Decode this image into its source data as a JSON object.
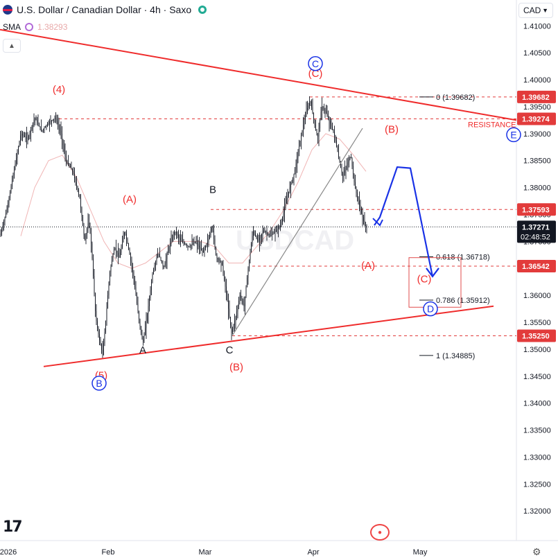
{
  "header": {
    "title": "U.S. Dollar / Canadian Dollar · 4h · Saxo",
    "indicator_name": "SMA",
    "indicator_value": "1.38293",
    "currency_button": "CAD",
    "logo_text": "17"
  },
  "colors": {
    "wave_red": "#ef2b2b",
    "wave_blue": "#1932e6",
    "candle": "#131722",
    "sma_line": "#f0b4b4",
    "grid_dash": "#e23b3b"
  },
  "chart_data": {
    "type": "candlestick",
    "ylim": [
      1.3145,
      1.4148
    ],
    "y_ticks": [
      "1.41000",
      "1.40500",
      "1.40000",
      "1.39500",
      "1.39000",
      "1.38500",
      "1.38000",
      "1.37500",
      "1.37000",
      "1.36500",
      "1.36000",
      "1.35500",
      "1.35000",
      "1.34500",
      "1.34000",
      "1.33500",
      "1.33000",
      "1.32500",
      "1.32000"
    ],
    "x_ticks": [
      "2026",
      "Feb",
      "Mar",
      "Apr",
      "May"
    ],
    "path_points": [
      [
        0,
        1.371
      ],
      [
        10,
        1.376
      ],
      [
        20,
        1.383
      ],
      [
        30,
        1.39
      ],
      [
        40,
        1.389
      ],
      [
        50,
        1.393
      ],
      [
        60,
        1.3905
      ],
      [
        70,
        1.392
      ],
      [
        80,
        1.393
      ],
      [
        88,
        1.39
      ],
      [
        95,
        1.385
      ],
      [
        105,
        1.383
      ],
      [
        115,
        1.378
      ],
      [
        122,
        1.37
      ],
      [
        128,
        1.374
      ],
      [
        132,
        1.369
      ],
      [
        138,
        1.356
      ],
      [
        143,
        1.352
      ],
      [
        148,
        1.349
      ],
      [
        153,
        1.356
      ],
      [
        158,
        1.364
      ],
      [
        165,
        1.369
      ],
      [
        172,
        1.367
      ],
      [
        180,
        1.372
      ],
      [
        185,
        1.369
      ],
      [
        192,
        1.364
      ],
      [
        200,
        1.356
      ],
      [
        206,
        1.351
      ],
      [
        212,
        1.356
      ],
      [
        220,
        1.364
      ],
      [
        228,
        1.368
      ],
      [
        236,
        1.365
      ],
      [
        244,
        1.369
      ],
      [
        252,
        1.372
      ],
      [
        262,
        1.37
      ],
      [
        272,
        1.369
      ],
      [
        282,
        1.37
      ],
      [
        292,
        1.368
      ],
      [
        300,
        1.37
      ],
      [
        306,
        1.373
      ],
      [
        312,
        1.367
      ],
      [
        320,
        1.366
      ],
      [
        328,
        1.359
      ],
      [
        334,
        1.353
      ],
      [
        340,
        1.356
      ],
      [
        346,
        1.36
      ],
      [
        352,
        1.358
      ],
      [
        358,
        1.365
      ],
      [
        365,
        1.372
      ],
      [
        372,
        1.37
      ],
      [
        380,
        1.372
      ],
      [
        390,
        1.371
      ],
      [
        398,
        1.372
      ],
      [
        405,
        1.373
      ],
      [
        410,
        1.376
      ],
      [
        418,
        1.38
      ],
      [
        425,
        1.383
      ],
      [
        432,
        1.388
      ],
      [
        438,
        1.392
      ],
      [
        444,
        1.395
      ],
      [
        448,
        1.396
      ],
      [
        452,
        1.393
      ],
      [
        458,
        1.389
      ],
      [
        464,
        1.395
      ],
      [
        470,
        1.394
      ],
      [
        476,
        1.392
      ],
      [
        482,
        1.39
      ],
      [
        488,
        1.386
      ],
      [
        494,
        1.382
      ],
      [
        500,
        1.384
      ],
      [
        506,
        1.386
      ],
      [
        512,
        1.38
      ],
      [
        518,
        1.377
      ],
      [
        522,
        1.375
      ],
      [
        526,
        1.373
      ],
      [
        530,
        1.3727
      ]
    ],
    "sma_points": [
      [
        30,
        1.371
      ],
      [
        50,
        1.38
      ],
      [
        70,
        1.385
      ],
      [
        90,
        1.386
      ],
      [
        110,
        1.382
      ],
      [
        130,
        1.376
      ],
      [
        150,
        1.37
      ],
      [
        170,
        1.366
      ],
      [
        190,
        1.365
      ],
      [
        210,
        1.366
      ],
      [
        230,
        1.368
      ],
      [
        250,
        1.37
      ],
      [
        270,
        1.37
      ],
      [
        290,
        1.37
      ],
      [
        310,
        1.369
      ],
      [
        330,
        1.366
      ],
      [
        350,
        1.366
      ],
      [
        370,
        1.369
      ],
      [
        390,
        1.372
      ],
      [
        410,
        1.376
      ],
      [
        430,
        1.381
      ],
      [
        450,
        1.387
      ],
      [
        470,
        1.39
      ],
      [
        490,
        1.389
      ],
      [
        510,
        1.386
      ],
      [
        528,
        1.383
      ]
    ],
    "price_levels": [
      {
        "label": "1.39682",
        "value": 1.39682,
        "x0": 447,
        "fib": "0 (1.39682)"
      },
      {
        "label": "1.39274",
        "value": 1.39274,
        "x0": 85,
        "fib": ""
      },
      {
        "label": "1.37593",
        "value": 1.37593,
        "x0": 304,
        "fib": ""
      },
      {
        "label": "1.36542",
        "value": 1.36542,
        "x0": 364,
        "fib": ""
      },
      {
        "label": "1.35250",
        "value": 1.3525,
        "x0": 335,
        "fib": ""
      }
    ],
    "current_price": {
      "label": "1.37271",
      "countdown": "02:48:52",
      "value": 1.37271
    },
    "fib_levels": [
      {
        "text": "0.618 (1.36718)",
        "value": 1.36718
      },
      {
        "text": "0.786 (1.35912)",
        "value": 1.35912
      },
      {
        "text": "1 (1.34885)",
        "value": 1.34885
      }
    ],
    "trendlines": [
      {
        "name": "upper-red",
        "x0": 0,
        "y0": 1.4093,
        "x1": 745,
        "y1": 1.3925,
        "color": "#ef2b2b"
      },
      {
        "name": "lower-red",
        "x0": 63,
        "y0": 1.3468,
        "x1": 712,
        "y1": 1.358,
        "color": "#ef2b2b"
      },
      {
        "name": "grey-channel",
        "x0": 335,
        "y0": 1.3525,
        "x1": 523,
        "y1": 1.391,
        "color": "#888888"
      }
    ],
    "projection": {
      "points": [
        [
          540,
          1.373
        ],
        [
          548,
          1.3745
        ],
        [
          573,
          1.3838
        ],
        [
          592,
          1.3836
        ],
        [
          624,
          1.3635
        ]
      ],
      "color": "#1932e6"
    },
    "target_box": {
      "x0": 590,
      "x1": 665,
      "y_top": 1.367,
      "y_bottom": 1.3578
    },
    "wave_labels": [
      {
        "text": "(4)",
        "x": 85,
        "y": 1.3976,
        "color": "red"
      },
      {
        "text": "(A)",
        "x": 187,
        "y": 1.3772,
        "color": "red"
      },
      {
        "text": "B",
        "x": 307,
        "y": 1.379,
        "color": "black"
      },
      {
        "text": "(C)",
        "x": 455,
        "y": 1.4005,
        "color": "red"
      },
      {
        "text": "(B)",
        "x": 565,
        "y": 1.3902,
        "color": "red"
      },
      {
        "text": "(A)",
        "x": 531,
        "y": 1.3649,
        "color": "red"
      },
      {
        "text": "(C)",
        "x": 612,
        "y": 1.3624,
        "color": "red"
      },
      {
        "text": "A",
        "x": 206,
        "y": 1.3492,
        "color": "black"
      },
      {
        "text": "C",
        "x": 331,
        "y": 1.3492,
        "color": "black"
      },
      {
        "text": "(B)",
        "x": 341,
        "y": 1.3461,
        "color": "red"
      },
      {
        "text": "(5)",
        "x": 146,
        "y": 1.3445,
        "color": "red"
      }
    ],
    "circled_labels": [
      {
        "text": "C",
        "x": 455,
        "y": 1.403
      },
      {
        "text": "B",
        "x": 143,
        "y": 1.3437
      },
      {
        "text": "D",
        "x": 621,
        "y": 1.3575
      },
      {
        "text": "E",
        "x": 741,
        "y": 1.3898
      }
    ],
    "annotations": [
      {
        "text": "RESISTANCE",
        "x": 675,
        "y": 1.3912,
        "color": "red"
      }
    ],
    "watermark": "USDCAD"
  }
}
